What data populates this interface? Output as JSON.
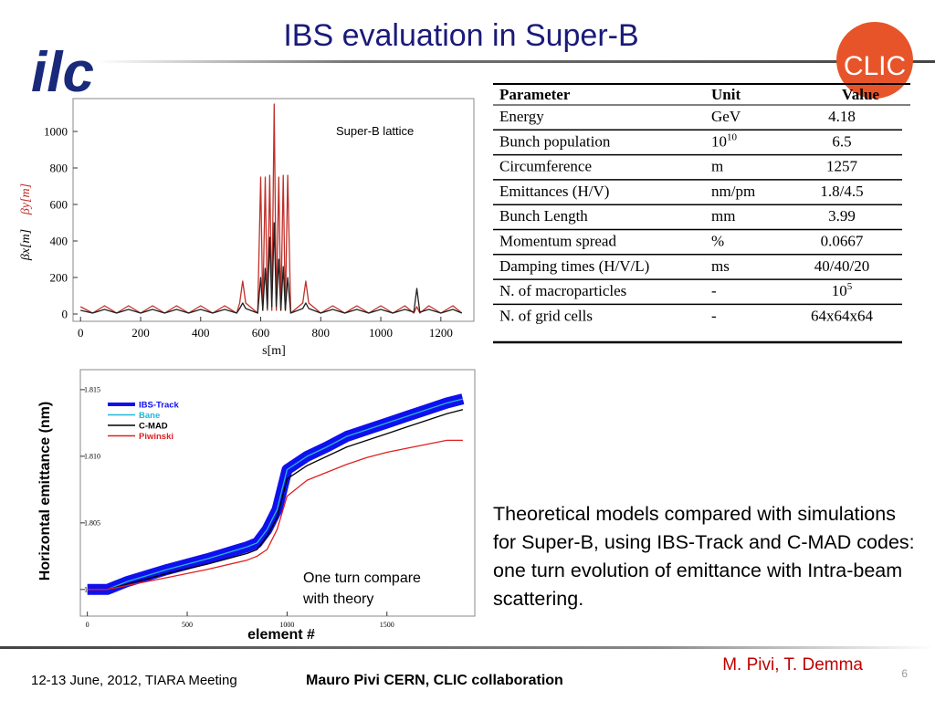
{
  "title": "IBS evaluation in Super-B",
  "logos": [
    "ilc",
    "CLIC"
  ],
  "table": {
    "header": [
      "Parameter",
      "Unit",
      "Value"
    ],
    "rows": [
      [
        "Energy",
        "GeV",
        "4.18"
      ],
      [
        "Bunch population",
        {
          "base": "10",
          "sup": "10"
        },
        "6.5"
      ],
      [
        "Circumference",
        "m",
        "1257"
      ],
      [
        "Emittances (H/V)",
        "nm/pm",
        "1.8/4.5"
      ],
      [
        "Bunch Length",
        "mm",
        "3.99"
      ],
      [
        "Momentum spread",
        "%",
        "0.0667"
      ],
      [
        "Damping times (H/V/L)",
        "ms",
        "40/40/20"
      ],
      [
        "N. of macroparticles",
        "-",
        {
          "base": "10",
          "sup": "5"
        }
      ],
      [
        "N. of grid cells",
        "-",
        "64x64x64"
      ]
    ]
  },
  "text": "Theoretical models compared with simulations for Super-B, using IBS-Track and C-MAD codes: one turn evolution of emittance with Intra-beam scattering.",
  "authors": "M. Pivi, T. Demma",
  "footer": {
    "date": "12-13 June, 2012, TIARA Meeting",
    "presenter": "Mauro Pivi  CERN, CLIC collaboration",
    "page": "6"
  },
  "chart_data": [
    {
      "type": "line",
      "annotation": "Super-B lattice",
      "xlabel": "s[m]",
      "ylabel": [
        "βx[m]",
        "βy[m]"
      ],
      "x": [
        0,
        40,
        80,
        120,
        160,
        200,
        240,
        280,
        320,
        360,
        400,
        440,
        480,
        520,
        530,
        540,
        550,
        590,
        600,
        607,
        615,
        622,
        630,
        637,
        645,
        652,
        660,
        667,
        675,
        682,
        690,
        700,
        740,
        750,
        760,
        800,
        840,
        880,
        920,
        960,
        1000,
        1040,
        1080,
        1110,
        1120,
        1130,
        1160,
        1200,
        1240,
        1270
      ],
      "series": [
        {
          "color": "#c0302a",
          "values": [
            40,
            5,
            45,
            5,
            45,
            5,
            45,
            5,
            45,
            5,
            45,
            5,
            45,
            5,
            60,
            180,
            60,
            5,
            750,
            20,
            750,
            20,
            760,
            20,
            1150,
            20,
            750,
            20,
            760,
            20,
            760,
            5,
            60,
            180,
            60,
            5,
            45,
            5,
            45,
            5,
            45,
            5,
            45,
            5,
            40,
            5,
            45,
            5,
            45,
            5
          ]
        },
        {
          "color": "#222222",
          "values": [
            20,
            5,
            25,
            5,
            25,
            5,
            25,
            5,
            25,
            5,
            25,
            5,
            25,
            5,
            30,
            60,
            30,
            5,
            200,
            20,
            250,
            30,
            420,
            40,
            500,
            40,
            300,
            20,
            260,
            20,
            200,
            5,
            30,
            60,
            30,
            5,
            25,
            5,
            25,
            5,
            25,
            5,
            25,
            10,
            140,
            10,
            25,
            5,
            25,
            5
          ]
        }
      ],
      "xlim": [
        -25,
        1310
      ],
      "ylim": [
        -40,
        1180
      ],
      "xticks": [
        0,
        200,
        400,
        600,
        800,
        1000,
        1200
      ],
      "yticks": [
        0,
        200,
        400,
        600,
        800,
        1000
      ]
    },
    {
      "type": "line",
      "annotation": "One turn compare with theory",
      "xlabel": "element #",
      "ylabel": "Horizontal emittance (nm)",
      "x": [
        0,
        100,
        200,
        400,
        600,
        800,
        850,
        900,
        950,
        1000,
        1100,
        1200,
        1300,
        1400,
        1500,
        1600,
        1700,
        1800,
        1880
      ],
      "series": [
        {
          "name": "IBS-Track",
          "color": "#1010ee",
          "values": [
            1.8,
            1.8,
            1.8006,
            1.8015,
            1.8023,
            1.8032,
            1.8035,
            1.8045,
            1.806,
            1.809,
            1.81,
            1.8107,
            1.8115,
            1.812,
            1.8125,
            1.813,
            1.8135,
            1.814,
            1.8143
          ]
        },
        {
          "name": "Bane",
          "color": "#20b8d8",
          "values": [
            1.8,
            1.8,
            1.8006,
            1.8015,
            1.8023,
            1.8032,
            1.8035,
            1.8045,
            1.806,
            1.809,
            1.81,
            1.8107,
            1.8115,
            1.812,
            1.8125,
            1.813,
            1.8135,
            1.814,
            1.8143
          ]
        },
        {
          "name": "C-MAD",
          "color": "#000000",
          "values": [
            1.8,
            1.8,
            1.8004,
            1.8012,
            1.8019,
            1.8027,
            1.803,
            1.804,
            1.8054,
            1.8083,
            1.8093,
            1.81,
            1.8107,
            1.8112,
            1.8117,
            1.8122,
            1.8127,
            1.8132,
            1.8135
          ]
        },
        {
          "name": "Piwinski",
          "color": "#e02020",
          "values": [
            1.8,
            1.8,
            1.8003,
            1.8009,
            1.8015,
            1.8022,
            1.8025,
            1.803,
            1.8045,
            1.807,
            1.8082,
            1.8088,
            1.8094,
            1.8099,
            1.8103,
            1.8106,
            1.8109,
            1.8112,
            1.8112
          ]
        }
      ],
      "xlim": [
        -35,
        1940
      ],
      "ylim": [
        1.798,
        1.8165
      ],
      "xticks": [
        0,
        500,
        1000,
        1500
      ],
      "yticks": [
        {
          "value": 1.8,
          "label": "1.800"
        },
        {
          "value": 1.805,
          "label": "1.805"
        },
        {
          "value": 1.81,
          "label": "1.810"
        },
        {
          "value": 1.815,
          "label": "1.815"
        }
      ]
    }
  ]
}
